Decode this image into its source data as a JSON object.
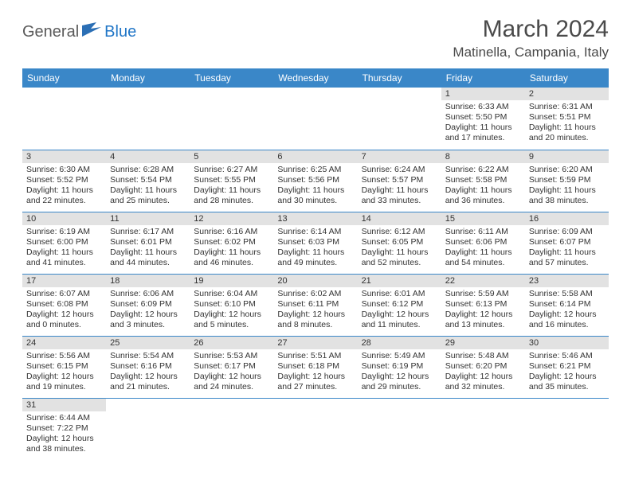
{
  "brand": {
    "part1": "General",
    "part2": "Blue"
  },
  "title": "March 2024",
  "location": "Matinella, Campania, Italy",
  "colors": {
    "header_bg": "#3a87c8",
    "header_fg": "#ffffff",
    "daynum_bg": "#e2e2e2",
    "rule": "#3a87c8",
    "brand_accent": "#2176c7",
    "text": "#333333"
  },
  "weekdays": [
    "Sunday",
    "Monday",
    "Tuesday",
    "Wednesday",
    "Thursday",
    "Friday",
    "Saturday"
  ],
  "weeks": [
    [
      {
        "n": "",
        "empty": true
      },
      {
        "n": "",
        "empty": true
      },
      {
        "n": "",
        "empty": true
      },
      {
        "n": "",
        "empty": true
      },
      {
        "n": "",
        "empty": true
      },
      {
        "n": "1",
        "sr": "6:33 AM",
        "ss": "5:50 PM",
        "dl": "11 hours and 17 minutes."
      },
      {
        "n": "2",
        "sr": "6:31 AM",
        "ss": "5:51 PM",
        "dl": "11 hours and 20 minutes."
      }
    ],
    [
      {
        "n": "3",
        "sr": "6:30 AM",
        "ss": "5:52 PM",
        "dl": "11 hours and 22 minutes."
      },
      {
        "n": "4",
        "sr": "6:28 AM",
        "ss": "5:54 PM",
        "dl": "11 hours and 25 minutes."
      },
      {
        "n": "5",
        "sr": "6:27 AM",
        "ss": "5:55 PM",
        "dl": "11 hours and 28 minutes."
      },
      {
        "n": "6",
        "sr": "6:25 AM",
        "ss": "5:56 PM",
        "dl": "11 hours and 30 minutes."
      },
      {
        "n": "7",
        "sr": "6:24 AM",
        "ss": "5:57 PM",
        "dl": "11 hours and 33 minutes."
      },
      {
        "n": "8",
        "sr": "6:22 AM",
        "ss": "5:58 PM",
        "dl": "11 hours and 36 minutes."
      },
      {
        "n": "9",
        "sr": "6:20 AM",
        "ss": "5:59 PM",
        "dl": "11 hours and 38 minutes."
      }
    ],
    [
      {
        "n": "10",
        "sr": "6:19 AM",
        "ss": "6:00 PM",
        "dl": "11 hours and 41 minutes."
      },
      {
        "n": "11",
        "sr": "6:17 AM",
        "ss": "6:01 PM",
        "dl": "11 hours and 44 minutes."
      },
      {
        "n": "12",
        "sr": "6:16 AM",
        "ss": "6:02 PM",
        "dl": "11 hours and 46 minutes."
      },
      {
        "n": "13",
        "sr": "6:14 AM",
        "ss": "6:03 PM",
        "dl": "11 hours and 49 minutes."
      },
      {
        "n": "14",
        "sr": "6:12 AM",
        "ss": "6:05 PM",
        "dl": "11 hours and 52 minutes."
      },
      {
        "n": "15",
        "sr": "6:11 AM",
        "ss": "6:06 PM",
        "dl": "11 hours and 54 minutes."
      },
      {
        "n": "16",
        "sr": "6:09 AM",
        "ss": "6:07 PM",
        "dl": "11 hours and 57 minutes."
      }
    ],
    [
      {
        "n": "17",
        "sr": "6:07 AM",
        "ss": "6:08 PM",
        "dl": "12 hours and 0 minutes."
      },
      {
        "n": "18",
        "sr": "6:06 AM",
        "ss": "6:09 PM",
        "dl": "12 hours and 3 minutes."
      },
      {
        "n": "19",
        "sr": "6:04 AM",
        "ss": "6:10 PM",
        "dl": "12 hours and 5 minutes."
      },
      {
        "n": "20",
        "sr": "6:02 AM",
        "ss": "6:11 PM",
        "dl": "12 hours and 8 minutes."
      },
      {
        "n": "21",
        "sr": "6:01 AM",
        "ss": "6:12 PM",
        "dl": "12 hours and 11 minutes."
      },
      {
        "n": "22",
        "sr": "5:59 AM",
        "ss": "6:13 PM",
        "dl": "12 hours and 13 minutes."
      },
      {
        "n": "23",
        "sr": "5:58 AM",
        "ss": "6:14 PM",
        "dl": "12 hours and 16 minutes."
      }
    ],
    [
      {
        "n": "24",
        "sr": "5:56 AM",
        "ss": "6:15 PM",
        "dl": "12 hours and 19 minutes."
      },
      {
        "n": "25",
        "sr": "5:54 AM",
        "ss": "6:16 PM",
        "dl": "12 hours and 21 minutes."
      },
      {
        "n": "26",
        "sr": "5:53 AM",
        "ss": "6:17 PM",
        "dl": "12 hours and 24 minutes."
      },
      {
        "n": "27",
        "sr": "5:51 AM",
        "ss": "6:18 PM",
        "dl": "12 hours and 27 minutes."
      },
      {
        "n": "28",
        "sr": "5:49 AM",
        "ss": "6:19 PM",
        "dl": "12 hours and 29 minutes."
      },
      {
        "n": "29",
        "sr": "5:48 AM",
        "ss": "6:20 PM",
        "dl": "12 hours and 32 minutes."
      },
      {
        "n": "30",
        "sr": "5:46 AM",
        "ss": "6:21 PM",
        "dl": "12 hours and 35 minutes."
      }
    ],
    [
      {
        "n": "31",
        "sr": "6:44 AM",
        "ss": "7:22 PM",
        "dl": "12 hours and 38 minutes."
      },
      {
        "n": "",
        "empty": true
      },
      {
        "n": "",
        "empty": true
      },
      {
        "n": "",
        "empty": true
      },
      {
        "n": "",
        "empty": true
      },
      {
        "n": "",
        "empty": true
      },
      {
        "n": "",
        "empty": true
      }
    ]
  ],
  "labels": {
    "sunrise": "Sunrise:",
    "sunset": "Sunset:",
    "daylight": "Daylight:"
  }
}
